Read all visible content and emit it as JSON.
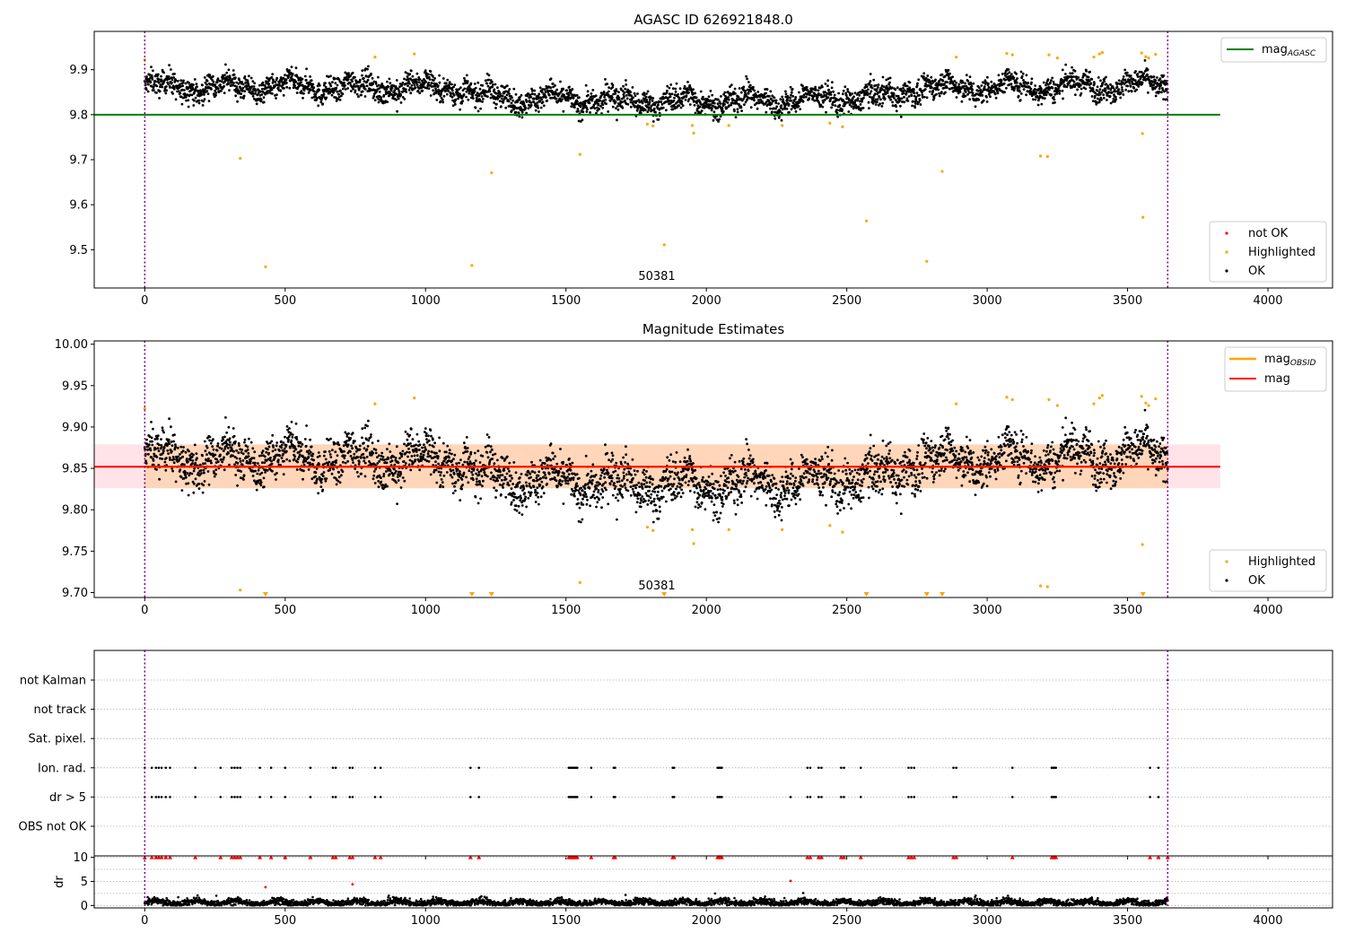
{
  "chart_data": [
    {
      "type": "scatter",
      "title": "AGASC ID 626921848.0",
      "xlabel": "",
      "ylabel": "",
      "xlim": [
        -180,
        4230
      ],
      "ylim": [
        9.415,
        9.985
      ],
      "xticks": [
        "0",
        "500",
        "1000",
        "1500",
        "2000",
        "2500",
        "3000",
        "3500",
        "4000"
      ],
      "yticks": [
        "9.5",
        "9.6",
        "9.7",
        "9.8",
        "9.9"
      ],
      "grid": false,
      "annotation": "50381",
      "vlines": [
        0,
        3643
      ],
      "hline": {
        "name": "mag_AGASC",
        "value": 9.8,
        "x_range": [
          -180,
          3830
        ],
        "color": "#008000"
      },
      "legend_lines": [
        {
          "label": "mag",
          "subscript": "AGASC",
          "color": "#008000"
        }
      ],
      "legend_lines_position": "upper right",
      "legend_points": [
        {
          "label": "not OK",
          "color": "#ff0000"
        },
        {
          "label": "Highlighted",
          "color": "#ffa500"
        },
        {
          "label": "OK",
          "color": "#000000"
        }
      ],
      "legend_points_position": "lower right",
      "series": [
        {
          "name": "OK",
          "color": "#000000",
          "description": "dense band of ~3650 points around 9.85 (range 9.79 to 9.92) for x from 0 to 3643"
        },
        {
          "name": "Highlighted",
          "color": "#ffa500",
          "points": [
            [
              0,
              9.922
            ],
            [
              340,
              9.703
            ],
            [
              430,
              9.462
            ],
            [
              820,
              9.928
            ],
            [
              960,
              9.935
            ],
            [
              1165,
              9.465
            ],
            [
              1235,
              9.671
            ],
            [
              1550,
              9.712
            ],
            [
              1790,
              9.779
            ],
            [
              1810,
              9.775
            ],
            [
              1850,
              9.511
            ],
            [
              1950,
              9.776
            ],
            [
              1955,
              9.759
            ],
            [
              2080,
              9.776
            ],
            [
              2270,
              9.776
            ],
            [
              2440,
              9.781
            ],
            [
              2485,
              9.773
            ],
            [
              2570,
              9.564
            ],
            [
              2785,
              9.474
            ],
            [
              2840,
              9.674
            ],
            [
              2890,
              9.928
            ],
            [
              3070,
              9.936
            ],
            [
              3090,
              9.933
            ],
            [
              3190,
              9.708
            ],
            [
              3215,
              9.707
            ],
            [
              3220,
              9.933
            ],
            [
              3250,
              9.926
            ],
            [
              3380,
              9.928
            ],
            [
              3400,
              9.935
            ],
            [
              3410,
              9.938
            ],
            [
              3550,
              9.937
            ],
            [
              3553,
              9.758
            ],
            [
              3555,
              9.572
            ],
            [
              3565,
              9.929
            ],
            [
              3575,
              9.926
            ],
            [
              3600,
              9.934
            ]
          ]
        }
      ]
    },
    {
      "type": "scatter",
      "title": "Magnitude Estimates",
      "xlabel": "",
      "ylabel": "",
      "xlim": [
        -180,
        4230
      ],
      "ylim": [
        9.694,
        10.004
      ],
      "xticks": [
        "0",
        "500",
        "1000",
        "1500",
        "2000",
        "2500",
        "3000",
        "3500",
        "4000"
      ],
      "yticks": [
        "9.70",
        "9.75",
        "9.80",
        "9.85",
        "9.90",
        "9.95",
        "10.00"
      ],
      "grid": false,
      "annotation": "50381",
      "vlines": [
        0,
        3643
      ],
      "hline": {
        "name": "mag",
        "value": 9.852,
        "x_range": [
          -180,
          3830
        ],
        "color": "#ff0000"
      },
      "band": {
        "low": 9.826,
        "high": 9.879,
        "x_range": [
          -180,
          3830
        ],
        "color": "#ffc0cb"
      },
      "obsid_line": {
        "name": "mag_OBSID",
        "value": 9.852,
        "low": 9.826,
        "high": 9.879,
        "x_range": [
          0,
          3643
        ],
        "color": "#ffa500"
      },
      "legend_lines": [
        {
          "label": "mag",
          "subscript": "OBSID",
          "color": "#ffa500"
        },
        {
          "label": "mag",
          "subscript": "",
          "color": "#ff0000"
        }
      ],
      "legend_lines_position": "upper right",
      "legend_points": [
        {
          "label": "Highlighted",
          "color": "#ffa500"
        },
        {
          "label": "OK",
          "color": "#000000"
        }
      ],
      "legend_points_position": "lower right",
      "series": [
        {
          "name": "OK",
          "color": "#000000",
          "description": "same data as above zoomed: band around 9.85 (range 9.79 to 9.92) for x from 0 to 3643"
        },
        {
          "name": "Highlighted",
          "color": "#ffa500",
          "points": [
            [
              0,
              9.922
            ],
            [
              340,
              9.703
            ],
            [
              820,
              9.928
            ],
            [
              960,
              9.935
            ],
            [
              1550,
              9.712
            ],
            [
              1790,
              9.779
            ],
            [
              1810,
              9.775
            ],
            [
              1950,
              9.776
            ],
            [
              1955,
              9.759
            ],
            [
              2080,
              9.776
            ],
            [
              2270,
              9.776
            ],
            [
              2440,
              9.781
            ],
            [
              2485,
              9.773
            ],
            [
              2890,
              9.928
            ],
            [
              3070,
              9.936
            ],
            [
              3090,
              9.933
            ],
            [
              3190,
              9.708
            ],
            [
              3215,
              9.707
            ],
            [
              3220,
              9.933
            ],
            [
              3250,
              9.926
            ],
            [
              3380,
              9.928
            ],
            [
              3400,
              9.935
            ],
            [
              3410,
              9.938
            ],
            [
              3550,
              9.937
            ],
            [
              3553,
              9.758
            ],
            [
              3565,
              9.929
            ],
            [
              3575,
              9.926
            ],
            [
              3600,
              9.934
            ]
          ]
        },
        {
          "name": "Highlighted (below axis)",
          "color": "#ffa500",
          "marker": "triangle-down",
          "x": [
            430,
            1165,
            1235,
            1850,
            2570,
            2785,
            2840,
            3555
          ]
        }
      ]
    },
    {
      "type": "scatter",
      "title": "",
      "xlabel": "",
      "ylabel": "",
      "xlim": [
        -180,
        4230
      ],
      "categories": [
        "not Kalman",
        "not track",
        "Sat. pixel.",
        "Ion. rad.",
        "dr > 5",
        "OBS not OK"
      ],
      "vlines": [
        0,
        3643
      ],
      "grid": true,
      "series": [
        {
          "name": "Ion. rad.",
          "color": "#000000",
          "x": [
            0,
            25,
            40,
            50,
            60,
            75,
            90,
            180,
            270,
            310,
            320,
            330,
            340,
            410,
            450,
            500,
            590,
            670,
            680,
            730,
            740,
            820,
            840,
            1160,
            1190,
            1510,
            1515,
            1520,
            1525,
            1530,
            1535,
            1540,
            1590,
            1670,
            1675,
            1880,
            1885,
            2040,
            2045,
            2050,
            2055,
            2360,
            2370,
            2400,
            2410,
            2480,
            2490,
            2550,
            2720,
            2730,
            2740,
            2880,
            2890,
            3090,
            3230,
            3235,
            3240,
            3245,
            3580,
            3610
          ]
        },
        {
          "name": "dr > 5",
          "color": "#000000",
          "x": [
            0,
            25,
            40,
            50,
            60,
            75,
            90,
            180,
            270,
            310,
            320,
            330,
            340,
            410,
            450,
            500,
            590,
            670,
            680,
            730,
            740,
            820,
            840,
            1160,
            1190,
            1510,
            1515,
            1520,
            1525,
            1530,
            1535,
            1540,
            1590,
            1670,
            1675,
            1880,
            1885,
            2040,
            2045,
            2050,
            2055,
            2300,
            2360,
            2370,
            2400,
            2410,
            2480,
            2490,
            2550,
            2720,
            2730,
            2740,
            2880,
            2890,
            3090,
            3230,
            3235,
            3240,
            3245,
            3580,
            3610
          ]
        },
        {
          "name": "not Kalman",
          "color": "#000000",
          "x": [
            3643
          ]
        }
      ]
    },
    {
      "type": "scatter",
      "title": "",
      "xlabel": "",
      "ylabel": "dr",
      "xlim": [
        -180,
        4230
      ],
      "ylim": [
        -0.5,
        10.3
      ],
      "xticks": [
        "0",
        "500",
        "1000",
        "1500",
        "2000",
        "2500",
        "3000",
        "3500",
        "4000"
      ],
      "yticks": [
        "0",
        "5",
        "10"
      ],
      "grid": true,
      "vlines": [
        0,
        3643
      ],
      "series": [
        {
          "name": "dr",
          "color": "#000000",
          "description": "~3650 points with dr between 0 and 2.5 for x from 0 to 3643"
        },
        {
          "name": "dr outliers",
          "color": "#ff0000",
          "points": [
            [
              430,
              3.8
            ],
            [
              740,
              4.4
            ],
            [
              2300,
              5.1
            ]
          ]
        },
        {
          "name": "dr clipped",
          "color": "#ff0000",
          "marker": "triangle-up",
          "value": 10,
          "x": [
            0,
            25,
            40,
            50,
            60,
            75,
            90,
            180,
            270,
            310,
            320,
            330,
            340,
            410,
            450,
            500,
            590,
            670,
            680,
            730,
            740,
            820,
            840,
            1160,
            1190,
            1510,
            1515,
            1520,
            1525,
            1530,
            1535,
            1540,
            1590,
            1670,
            1675,
            1880,
            1885,
            2040,
            2045,
            2050,
            2055,
            2360,
            2370,
            2400,
            2410,
            2480,
            2490,
            2550,
            2720,
            2730,
            2740,
            2880,
            2890,
            3090,
            3230,
            3235,
            3240,
            3245,
            3580,
            3610,
            3643
          ]
        }
      ]
    }
  ]
}
